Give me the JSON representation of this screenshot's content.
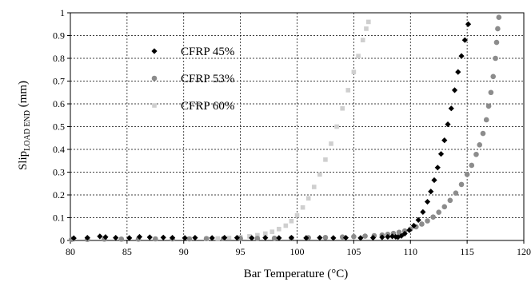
{
  "chart_data": {
    "type": "scatter",
    "xlabel": "Bar Temperature (°C)",
    "ylabel_main": "Slip",
    "ylabel_sub": "LOAD END",
    "ylabel_unit": " (mm)",
    "xlim": [
      80,
      120
    ],
    "ylim": [
      0,
      1
    ],
    "x_ticks": [
      80,
      85,
      90,
      95,
      100,
      105,
      110,
      115,
      120
    ],
    "y_ticks": [
      0,
      0.1,
      0.2,
      0.3,
      0.4,
      0.5,
      0.6,
      0.7,
      0.8,
      0.9,
      1
    ],
    "grid": "dashed",
    "legend_position": "top-left",
    "series": [
      {
        "name": "CFRP 45%",
        "marker": "diamond",
        "color": "#000000",
        "points": [
          [
            80.3,
            0.01
          ],
          [
            81.5,
            0.012
          ],
          [
            82.6,
            0.018
          ],
          [
            83.1,
            0.015
          ],
          [
            84.0,
            0.012
          ],
          [
            85.2,
            0.011
          ],
          [
            86.1,
            0.016
          ],
          [
            87.0,
            0.014
          ],
          [
            88.2,
            0.013
          ],
          [
            89.0,
            0.012
          ],
          [
            90.1,
            0.011
          ],
          [
            91.0,
            0.012
          ],
          [
            92.5,
            0.011
          ],
          [
            93.6,
            0.012
          ],
          [
            94.7,
            0.012
          ],
          [
            96.0,
            0.011
          ],
          [
            97.2,
            0.012
          ],
          [
            98.4,
            0.011
          ],
          [
            99.5,
            0.012
          ],
          [
            100.8,
            0.011
          ],
          [
            102.0,
            0.012
          ],
          [
            103.2,
            0.011
          ],
          [
            104.3,
            0.012
          ],
          [
            105.6,
            0.011
          ],
          [
            106.7,
            0.012
          ],
          [
            107.5,
            0.014
          ],
          [
            108.0,
            0.016
          ],
          [
            108.4,
            0.018
          ],
          [
            108.7,
            0.016
          ],
          [
            108.9,
            0.015
          ],
          [
            109.2,
            0.02
          ],
          [
            109.5,
            0.03
          ],
          [
            109.9,
            0.045
          ],
          [
            110.3,
            0.065
          ],
          [
            110.7,
            0.09
          ],
          [
            111.1,
            0.125
          ],
          [
            111.5,
            0.17
          ],
          [
            111.8,
            0.215
          ],
          [
            112.1,
            0.265
          ],
          [
            112.4,
            0.32
          ],
          [
            112.7,
            0.38
          ],
          [
            113.0,
            0.44
          ],
          [
            113.3,
            0.51
          ],
          [
            113.6,
            0.58
          ],
          [
            113.9,
            0.66
          ],
          [
            114.2,
            0.74
          ],
          [
            114.5,
            0.81
          ],
          [
            114.8,
            0.88
          ],
          [
            115.1,
            0.95
          ]
        ]
      },
      {
        "name": "CFRP 53%",
        "marker": "circle",
        "color": "#8c8c8c",
        "points": [
          [
            80.1,
            0.005
          ],
          [
            81.5,
            0.005
          ],
          [
            83.0,
            0.006
          ],
          [
            84.5,
            0.006
          ],
          [
            86.0,
            0.006
          ],
          [
            87.5,
            0.007
          ],
          [
            89.0,
            0.007
          ],
          [
            90.5,
            0.007
          ],
          [
            92.0,
            0.008
          ],
          [
            93.5,
            0.008
          ],
          [
            95.0,
            0.009
          ],
          [
            96.5,
            0.009
          ],
          [
            98.0,
            0.01
          ],
          [
            99.5,
            0.011
          ],
          [
            101.0,
            0.012
          ],
          [
            102.5,
            0.013
          ],
          [
            104.0,
            0.015
          ],
          [
            105.0,
            0.017
          ],
          [
            106.0,
            0.019
          ],
          [
            106.8,
            0.021
          ],
          [
            107.5,
            0.024
          ],
          [
            108.0,
            0.027
          ],
          [
            108.5,
            0.031
          ],
          [
            109.0,
            0.036
          ],
          [
            109.5,
            0.042
          ],
          [
            110.0,
            0.05
          ],
          [
            110.5,
            0.06
          ],
          [
            111.0,
            0.072
          ],
          [
            111.5,
            0.086
          ],
          [
            112.0,
            0.103
          ],
          [
            112.5,
            0.124
          ],
          [
            113.0,
            0.148
          ],
          [
            113.5,
            0.176
          ],
          [
            114.0,
            0.208
          ],
          [
            114.5,
            0.246
          ],
          [
            115.0,
            0.29
          ],
          [
            115.4,
            0.33
          ],
          [
            115.8,
            0.378
          ],
          [
            116.1,
            0.42
          ],
          [
            116.4,
            0.47
          ],
          [
            116.7,
            0.53
          ],
          [
            116.9,
            0.59
          ],
          [
            117.1,
            0.65
          ],
          [
            117.3,
            0.72
          ],
          [
            117.5,
            0.8
          ],
          [
            117.6,
            0.87
          ],
          [
            117.7,
            0.93
          ],
          [
            117.8,
            0.98
          ]
        ]
      },
      {
        "name": "CFRP 60%",
        "marker": "square",
        "color": "#cfcfcf",
        "points": [
          [
            80.2,
            0.004
          ],
          [
            81.5,
            0.004
          ],
          [
            83.0,
            0.005
          ],
          [
            84.5,
            0.005
          ],
          [
            86.0,
            0.005
          ],
          [
            87.5,
            0.006
          ],
          [
            89.0,
            0.006
          ],
          [
            90.5,
            0.007
          ],
          [
            92.0,
            0.008
          ],
          [
            93.0,
            0.009
          ],
          [
            94.0,
            0.011
          ],
          [
            95.0,
            0.014
          ],
          [
            95.8,
            0.018
          ],
          [
            96.5,
            0.023
          ],
          [
            97.2,
            0.03
          ],
          [
            97.8,
            0.038
          ],
          [
            98.4,
            0.05
          ],
          [
            99.0,
            0.065
          ],
          [
            99.5,
            0.085
          ],
          [
            100.0,
            0.11
          ],
          [
            100.5,
            0.145
          ],
          [
            101.0,
            0.185
          ],
          [
            101.5,
            0.235
          ],
          [
            102.0,
            0.29
          ],
          [
            102.5,
            0.355
          ],
          [
            103.0,
            0.425
          ],
          [
            103.5,
            0.5
          ],
          [
            104.0,
            0.58
          ],
          [
            104.5,
            0.66
          ],
          [
            105.0,
            0.74
          ],
          [
            105.4,
            0.81
          ],
          [
            105.8,
            0.88
          ],
          [
            106.1,
            0.93
          ],
          [
            106.3,
            0.96
          ]
        ]
      }
    ]
  }
}
